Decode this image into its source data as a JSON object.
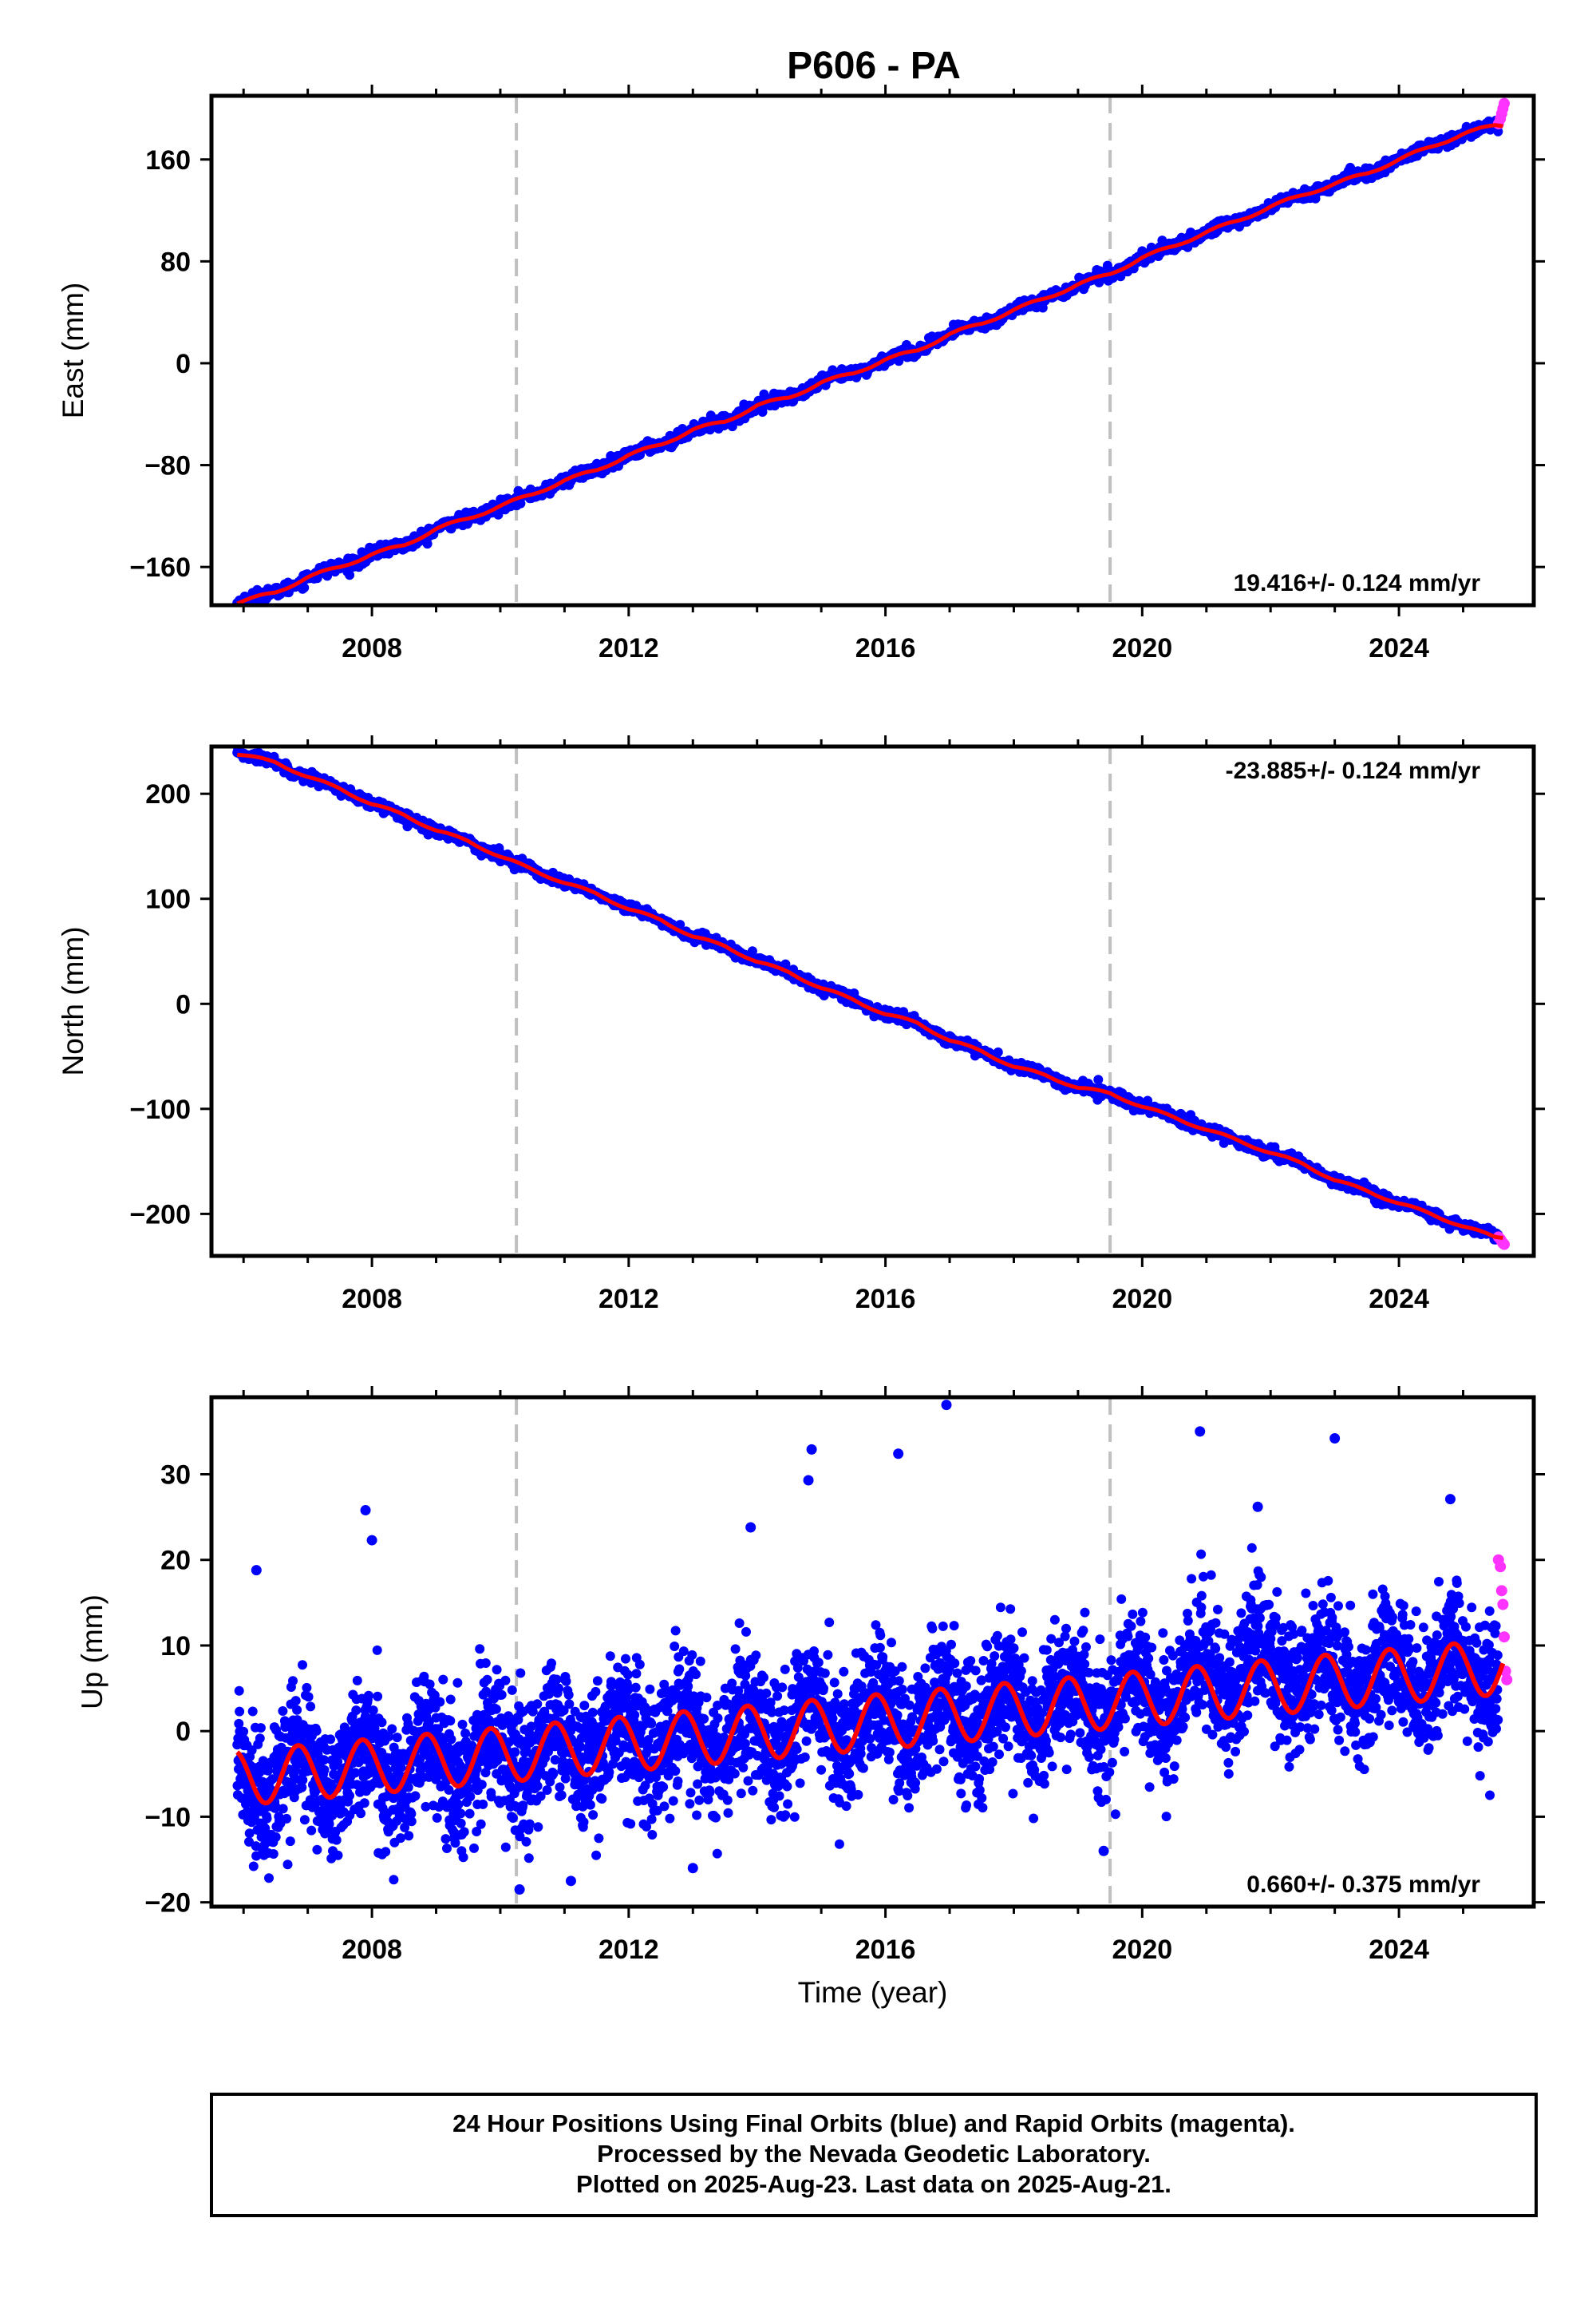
{
  "title": "P606 - PA",
  "caption": [
    "24 Hour Positions Using Final Orbits (blue) and Rapid Orbits (magenta).",
    "Processed by the Nevada Geodetic Laboratory.",
    "Plotted on 2025-Aug-23. Last data on 2025-Aug-21."
  ],
  "colors": {
    "final_orbits": "#0000ff",
    "rapid_orbits": "#ff33ff",
    "model_fit": "#ff0000",
    "vertical_markers": "#c0c0c0",
    "frame": "#000000"
  },
  "chart_data": [
    {
      "type": "scatter",
      "panel": "east",
      "title": "P606 - PA",
      "xlabel": "",
      "ylabel": "East (mm)",
      "xlim": [
        2005.5,
        2026.1
      ],
      "ylim": [
        -190,
        210
      ],
      "x_ticks": [
        2008,
        2012,
        2016,
        2020,
        2024
      ],
      "y_ticks": [
        160,
        80,
        0,
        -80,
        -160
      ],
      "y_tick_labels": [
        "160",
        "80",
        "0",
        "−80",
        "−160"
      ],
      "rate_text": "19.416+/- 0.124 mm/yr",
      "rate_position": "bottom-right",
      "grid": false,
      "vertical_markers": [
        2010.25,
        2019.5
      ],
      "series": [
        {
          "role": "Final Orbits (blue)",
          "x": [
            2005.9,
            2006.5,
            2007.0,
            2007.5,
            2008.0,
            2008.5,
            2009.0,
            2009.5,
            2010.0,
            2010.5,
            2011.0,
            2011.5,
            2012.0,
            2012.5,
            2013.0,
            2013.5,
            2014.0,
            2014.5,
            2015.0,
            2015.5,
            2016.0,
            2016.5,
            2017.0,
            2017.5,
            2018.0,
            2018.5,
            2019.0,
            2019.5,
            2020.0,
            2020.5,
            2021.0,
            2021.5,
            2022.0,
            2022.5,
            2023.0,
            2023.5,
            2024.0,
            2024.5,
            2025.0,
            2025.5
          ],
          "values": [
            -188,
            -180,
            -168,
            -160,
            -150,
            -143,
            -130,
            -122,
            -112,
            -103,
            -92,
            -84,
            -72,
            -64,
            -52,
            -46,
            -33,
            -27,
            -15,
            -8,
            3,
            10,
            23,
            31,
            42,
            51,
            62,
            70,
            83,
            92,
            103,
            112,
            123,
            132,
            141,
            149,
            160,
            170,
            180,
            187
          ]
        },
        {
          "role": "Rapid Orbits (magenta)",
          "x": [
            2025.55,
            2025.58,
            2025.6,
            2025.62,
            2025.64
          ],
          "values": [
            188,
            192,
            196,
            200,
            204
          ]
        },
        {
          "role": "model fit (red)",
          "x": [
            2005.9,
            2025.6
          ],
          "values": [
            -188,
            190
          ]
        }
      ]
    },
    {
      "type": "scatter",
      "panel": "north",
      "xlabel": "",
      "ylabel": "North (mm)",
      "xlim": [
        2005.5,
        2026.1
      ],
      "ylim": [
        -240,
        245
      ],
      "x_ticks": [
        2008,
        2012,
        2016,
        2020,
        2024
      ],
      "y_ticks": [
        200,
        100,
        0,
        -100,
        -200
      ],
      "y_tick_labels": [
        "200",
        "100",
        "0",
        "−100",
        "−200"
      ],
      "rate_text": "-23.885+/- 0.124 mm/yr",
      "rate_position": "top-right",
      "grid": false,
      "vertical_markers": [
        2010.25,
        2019.5
      ],
      "series": [
        {
          "role": "Final Orbits (blue)",
          "x": [
            2005.9,
            2006.5,
            2007.0,
            2007.5,
            2008.0,
            2008.5,
            2009.0,
            2009.5,
            2010.0,
            2010.5,
            2011.0,
            2011.5,
            2012.0,
            2012.5,
            2013.0,
            2013.5,
            2014.0,
            2014.5,
            2015.0,
            2015.5,
            2016.0,
            2016.5,
            2017.0,
            2017.5,
            2018.0,
            2018.5,
            2019.0,
            2019.5,
            2020.0,
            2020.5,
            2021.0,
            2021.5,
            2022.0,
            2022.5,
            2023.0,
            2023.5,
            2024.0,
            2024.5,
            2025.0,
            2025.5
          ],
          "values": [
            238,
            230,
            216,
            205,
            190,
            180,
            165,
            155,
            140,
            128,
            115,
            105,
            90,
            80,
            64,
            55,
            40,
            30,
            15,
            4,
            -10,
            -18,
            -35,
            -45,
            -60,
            -68,
            -80,
            -85,
            -98,
            -108,
            -120,
            -130,
            -142,
            -152,
            -168,
            -178,
            -190,
            -200,
            -212,
            -222
          ]
        },
        {
          "role": "Rapid Orbits (magenta)",
          "x": [
            2025.55,
            2025.58,
            2025.6,
            2025.62,
            2025.64
          ],
          "values": [
            -222,
            -224,
            -226,
            -228,
            -229
          ]
        },
        {
          "role": "model fit (red)",
          "x": [
            2005.9,
            2025.6
          ],
          "values": [
            238,
            -222
          ]
        }
      ]
    },
    {
      "type": "scatter",
      "panel": "up",
      "xlabel": "Time (year)",
      "ylabel": "Up (mm)",
      "xlim": [
        2005.5,
        2026.1
      ],
      "ylim": [
        -20.5,
        39
      ],
      "x_ticks": [
        2008,
        2012,
        2016,
        2020,
        2024
      ],
      "y_ticks": [
        30,
        20,
        10,
        0,
        -10,
        -20
      ],
      "y_tick_labels": [
        "30",
        "20",
        "10",
        "0",
        "−10",
        "−20"
      ],
      "rate_text": "0.660+/- 0.375 mm/yr",
      "rate_position": "bottom-right",
      "grid": false,
      "vertical_markers": [
        2010.25,
        2019.5
      ],
      "model": {
        "rate_mm_per_yr": 0.66,
        "intercept_mm_at_2005.9": -5.5,
        "annual_amplitude_mm": 3.2,
        "peak_fraction_of_year": 0.85
      },
      "series": [
        {
          "role": "Final Orbits (blue) outliers",
          "x": [
            2006.2,
            2007.9,
            2008.0,
            2013.9,
            2014.8,
            2014.85,
            2016.2,
            2016.95,
            2020.9,
            2021.8,
            2023.0,
            2024.8,
            2010.3,
            2011.1,
            2013.0,
            2019.4
          ],
          "values": [
            18.8,
            25.8,
            22.3,
            23.8,
            29.3,
            32.9,
            32.4,
            38.1,
            35.0,
            26.2,
            34.2,
            27.1,
            -18.5,
            -17.5,
            -16.0,
            -14.0
          ]
        },
        {
          "role": "Rapid Orbits (magenta)",
          "x": [
            2025.55,
            2025.58,
            2025.6,
            2025.62,
            2025.64,
            2025.66,
            2025.68
          ],
          "values": [
            20.0,
            19.2,
            16.4,
            14.8,
            11.0,
            7.0,
            6.0
          ]
        }
      ]
    }
  ]
}
